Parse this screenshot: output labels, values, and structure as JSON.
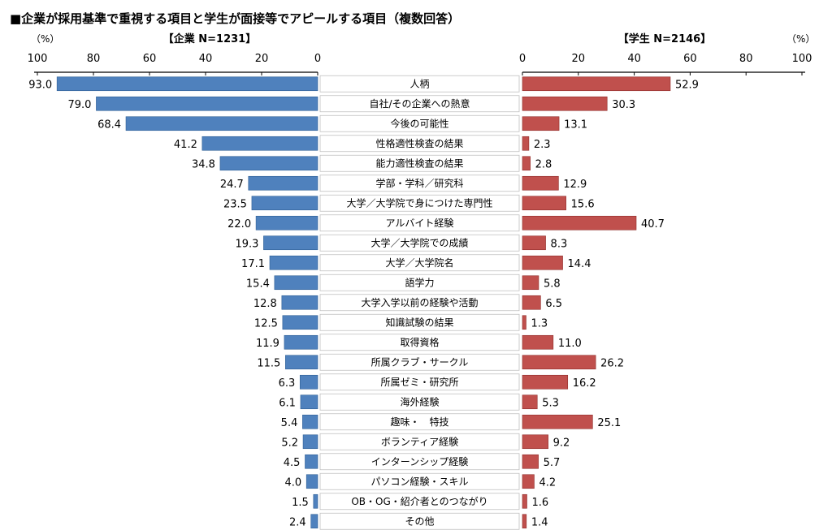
{
  "chart_data": {
    "type": "bar",
    "title": "■企業が採用基準で重視する項目と学生が面接等でアピールする項目（複数回答）",
    "left_unit": "（%）",
    "right_unit": "（%）",
    "xlim": [
      0,
      100
    ],
    "ticks": [
      0,
      20,
      40,
      60,
      80,
      100
    ],
    "colors": {
      "company": "#4f81bd",
      "student": "#c0504d",
      "company_edge": "#2f5f95",
      "student_edge": "#8f2d2a"
    },
    "categories": [
      "人柄",
      "自社/その企業への熱意",
      "今後の可能性",
      "性格適性検査の結果",
      "能力適性検査の結果",
      "学部・学科／研究科",
      "大学／大学院で身につけた専門性",
      "アルバイト経験",
      "大学／大学院での成績",
      "大学／大学院名",
      "語学力",
      "大学入学以前の経験や活動",
      "知識試験の結果",
      "取得資格",
      "所属クラブ・サークル",
      "所属ゼミ・研究所",
      "海外経験",
      "趣味・　特技",
      "ボランティア経験",
      "インターンシップ経験",
      "パソコン経験・スキル",
      "OB・OG・紹介者とのつながり",
      "その他"
    ],
    "series": [
      {
        "name": "【企業 N=1231】",
        "side": "left",
        "values": [
          93.0,
          79.0,
          68.4,
          41.2,
          34.8,
          24.7,
          23.5,
          22.0,
          19.3,
          17.1,
          15.4,
          12.8,
          12.5,
          11.9,
          11.5,
          6.3,
          6.1,
          5.4,
          5.2,
          4.5,
          4.0,
          1.5,
          2.4
        ],
        "labels": [
          "93.0",
          "79.0",
          "68.4",
          "41.2",
          "34.8",
          "24.7",
          "23.5",
          "22.0",
          "19.3",
          "17.1",
          "15.4",
          "12.8",
          "12.5",
          "11.9",
          "11.5",
          "6.3",
          "6.1",
          "5.4",
          "5.2",
          "4.5",
          "4.0",
          "1.5",
          "2.4"
        ]
      },
      {
        "name": "【学生 N=2146】",
        "side": "right",
        "values": [
          52.9,
          30.3,
          13.1,
          2.3,
          2.8,
          12.9,
          15.6,
          40.7,
          8.3,
          14.4,
          5.8,
          6.5,
          1.3,
          11.0,
          26.2,
          16.2,
          5.3,
          25.1,
          9.2,
          5.7,
          4.2,
          1.6,
          1.4
        ],
        "labels": [
          "52.9",
          "30.3",
          "13.1",
          "2.3",
          "2.8",
          "12.9",
          "15.6",
          "40.7",
          "8.3",
          "14.4",
          "5.8",
          "6.5",
          "1.3",
          "11.0",
          "26.2",
          "16.2",
          "5.3",
          "25.1",
          "9.2",
          "5.7",
          "4.2",
          "1.6",
          "1.4"
        ]
      }
    ]
  }
}
